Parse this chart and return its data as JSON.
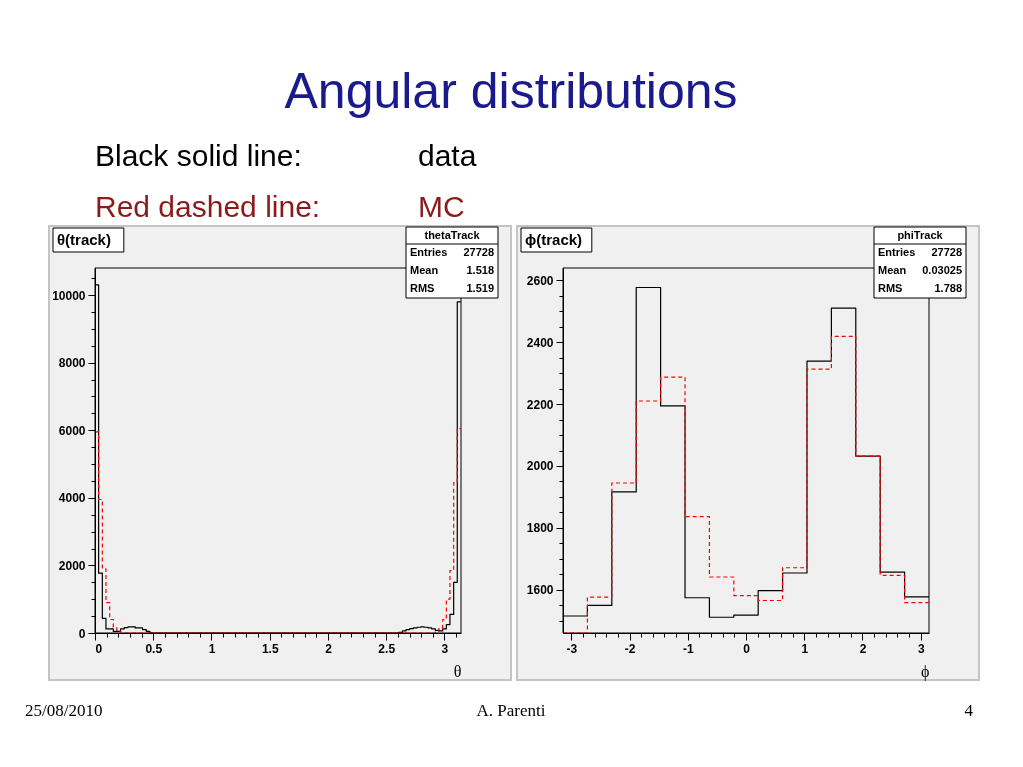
{
  "chart_data": [
    {
      "type": "other",
      "title": "Angular distributions",
      "annotations": [
        "Black solid line:",
        "data",
        "Red dashed line:",
        "MC"
      ]
    },
    {
      "type": "histogram",
      "title": "θ(track)",
      "xlabel": "θ",
      "annotations": [
        "thetaTrack",
        "Entries",
        "27728",
        "Mean",
        "1.518",
        "RMS",
        "1.519"
      ],
      "bins": [
        0,
        0.031,
        0.063,
        0.094,
        0.126,
        0.157,
        0.188,
        0.22,
        0.251,
        0.283,
        0.314,
        0.346,
        0.377,
        0.408,
        0.44,
        0.471,
        0.503,
        0.534,
        0.565,
        0.597,
        0.628,
        0.66,
        0.691,
        0.723,
        0.754,
        0.785,
        0.817,
        0.848,
        0.88,
        0.911,
        0.942,
        0.974,
        1.005,
        1.037,
        1.068,
        1.1,
        1.131,
        1.162,
        1.194,
        1.225,
        1.257,
        1.288,
        1.319,
        1.351,
        1.382,
        1.414,
        1.445,
        1.477,
        1.508,
        1.539,
        1.571,
        1.602,
        1.634,
        1.665,
        1.696,
        1.728,
        1.759,
        1.791,
        1.822,
        1.854,
        1.885,
        1.916,
        1.948,
        1.979,
        2.011,
        2.042,
        2.073,
        2.105,
        2.136,
        2.168,
        2.199,
        2.231,
        2.262,
        2.293,
        2.325,
        2.356,
        2.388,
        2.419,
        2.45,
        2.482,
        2.513,
        2.545,
        2.576,
        2.608,
        2.639,
        2.67,
        2.702,
        2.733,
        2.765,
        2.796,
        2.827,
        2.859,
        2.89,
        2.922,
        2.953,
        2.985,
        3.016,
        3.047,
        3.079,
        3.11,
        3.142
      ],
      "series": [
        {
          "color": "#000000",
          "line_style": "solid",
          "values": [
            10300,
            1770,
            430,
            120,
            120,
            50,
            50,
            120,
            160,
            180,
            180,
            150,
            150,
            100,
            50,
            0,
            0,
            0,
            0,
            0,
            0,
            0,
            0,
            0,
            0,
            0,
            0,
            0,
            0,
            0,
            0,
            0,
            0,
            0,
            0,
            0,
            0,
            0,
            0,
            0,
            0,
            0,
            0,
            0,
            0,
            0,
            0,
            0,
            0,
            0,
            0,
            0,
            0,
            0,
            0,
            0,
            0,
            0,
            0,
            0,
            0,
            0,
            0,
            0,
            0,
            0,
            0,
            0,
            0,
            0,
            0,
            0,
            0,
            0,
            0,
            0,
            0,
            0,
            0,
            0,
            0,
            0,
            0,
            20,
            60,
            100,
            130,
            150,
            170,
            180,
            170,
            150,
            120,
            80,
            60,
            120,
            250,
            550,
            1500,
            9800
          ]
        },
        {
          "color": "#ff0000",
          "line_style": "dashed",
          "values": [
            5950,
            3950,
            1900,
            900,
            400,
            150,
            50,
            0,
            0,
            0,
            0,
            0,
            0,
            0,
            0,
            0,
            0,
            0,
            0,
            0,
            0,
            0,
            0,
            0,
            0,
            0,
            0,
            0,
            0,
            0,
            0,
            0,
            0,
            0,
            0,
            0,
            0,
            0,
            0,
            0,
            0,
            0,
            0,
            0,
            0,
            0,
            0,
            0,
            0,
            0,
            0,
            0,
            0,
            0,
            0,
            0,
            0,
            0,
            0,
            0,
            0,
            0,
            0,
            0,
            0,
            0,
            0,
            0,
            0,
            0,
            0,
            0,
            0,
            0,
            0,
            0,
            0,
            0,
            0,
            0,
            0,
            0,
            0,
            0,
            0,
            0,
            0,
            0,
            0,
            0,
            0,
            0,
            0,
            50,
            150,
            400,
            1000,
            1850,
            4450,
            6050
          ]
        }
      ],
      "xlim": [
        0,
        3.142
      ],
      "ylim": [
        0,
        10800
      ],
      "xticks": [
        0,
        {
          "value": 0.1,
          "label": null
        },
        {
          "value": 0.2,
          "label": null
        },
        {
          "value": 0.3,
          "label": null
        },
        {
          "value": 0.4,
          "label": null
        },
        0.5,
        {
          "value": 0.6,
          "label": null
        },
        {
          "value": 0.7,
          "label": null
        },
        {
          "value": 0.8,
          "label": null
        },
        {
          "value": 0.9,
          "label": null
        },
        1,
        {
          "value": 1.1,
          "label": null
        },
        {
          "value": 1.2,
          "label": null
        },
        {
          "value": 1.3,
          "label": null
        },
        {
          "value": 1.4,
          "label": null
        },
        1.5,
        {
          "value": 1.6,
          "label": null
        },
        {
          "value": 1.7,
          "label": null
        },
        {
          "value": 1.8,
          "label": null
        },
        {
          "value": 1.9,
          "label": null
        },
        2,
        {
          "value": 2.1,
          "label": null
        },
        {
          "value": 2.2,
          "label": null
        },
        {
          "value": 2.3,
          "label": null
        },
        {
          "value": 2.4,
          "label": null
        },
        2.5,
        {
          "value": 2.6,
          "label": null
        },
        {
          "value": 2.7,
          "label": null
        },
        {
          "value": 2.8,
          "label": null
        },
        {
          "value": 2.9,
          "label": null
        },
        3,
        {
          "value": 3.1,
          "label": null
        }
      ],
      "yticks": [
        0,
        {
          "value": 500,
          "label": null
        },
        {
          "value": 1000,
          "label": null
        },
        {
          "value": 1500,
          "label": null
        },
        2000,
        {
          "value": 2500,
          "label": null
        },
        {
          "value": 3000,
          "label": null
        },
        {
          "value": 3500,
          "label": null
        },
        4000,
        {
          "value": 4500,
          "label": null
        },
        {
          "value": 5000,
          "label": null
        },
        {
          "value": 5500,
          "label": null
        },
        6000,
        {
          "value": 6500,
          "label": null
        },
        {
          "value": 7000,
          "label": null
        },
        {
          "value": 7500,
          "label": null
        },
        8000,
        {
          "value": 8500,
          "label": null
        },
        {
          "value": 9000,
          "label": null
        },
        {
          "value": 9500,
          "label": null
        },
        10000,
        {
          "value": 10500,
          "label": null
        }
      ]
    },
    {
      "type": "histogram",
      "title": "ϕ(track)",
      "xlabel": "ϕ",
      "annotations": [
        "phiTrack",
        "Entries",
        "27728",
        "Mean",
        "0.03025",
        "RMS",
        "1.788"
      ],
      "bins": [
        -3.142,
        -2.723,
        -2.304,
        -1.885,
        -1.466,
        -1.047,
        -0.628,
        -0.209,
        0.209,
        0.628,
        1.047,
        1.466,
        1.885,
        2.304,
        2.723,
        3.142
      ],
      "series": [
        {
          "color": "#000000",
          "line_style": "solid",
          "values": [
            1515,
            1549,
            1916,
            2577,
            2194,
            1574,
            1511,
            1518,
            1597,
            1654,
            2339,
            2510,
            2032,
            1657,
            1577
          ]
        },
        {
          "color": "#ff0000",
          "line_style": "dashed",
          "values": [
            1460,
            1576,
            1945,
            2210,
            2287,
            1836,
            1641,
            1581,
            1565,
            1671,
            2313,
            2419,
            2032,
            1646,
            1558
          ]
        }
      ],
      "xlim": [
        -3.142,
        3.142
      ],
      "ylim": [
        1460,
        2640
      ],
      "xticks": [
        -3,
        {
          "value": -2.8,
          "label": null
        },
        {
          "value": -2.6,
          "label": null
        },
        {
          "value": -2.4,
          "label": null
        },
        {
          "value": -2.2,
          "label": null
        },
        -2,
        {
          "value": -1.8,
          "label": null
        },
        {
          "value": -1.6,
          "label": null
        },
        {
          "value": -1.4,
          "label": null
        },
        {
          "value": -1.2,
          "label": null
        },
        -1,
        {
          "value": -0.8,
          "label": null
        },
        {
          "value": -0.6,
          "label": null
        },
        {
          "value": -0.4,
          "label": null
        },
        {
          "value": -0.2,
          "label": null
        },
        0,
        {
          "value": 0.2,
          "label": null
        },
        {
          "value": 0.4,
          "label": null
        },
        {
          "value": 0.6,
          "label": null
        },
        {
          "value": 0.8,
          "label": null
        },
        1,
        {
          "value": 1.2,
          "label": null
        },
        {
          "value": 1.4,
          "label": null
        },
        {
          "value": 1.6,
          "label": null
        },
        {
          "value": 1.8,
          "label": null
        },
        2,
        {
          "value": 2.2,
          "label": null
        },
        {
          "value": 2.4,
          "label": null
        },
        {
          "value": 2.6,
          "label": null
        },
        {
          "value": 2.8,
          "label": null
        },
        3
      ],
      "yticks": [
        {
          "value": 1500,
          "label": null
        },
        {
          "value": 1550,
          "label": null
        },
        1600,
        {
          "value": 1650,
          "label": null
        },
        {
          "value": 1700,
          "label": null
        },
        {
          "value": 1750,
          "label": null
        },
        1800,
        {
          "value": 1850,
          "label": null
        },
        {
          "value": 1900,
          "label": null
        },
        {
          "value": 1950,
          "label": null
        },
        2000,
        {
          "value": 2050,
          "label": null
        },
        {
          "value": 2100,
          "label": null
        },
        {
          "value": 2150,
          "label": null
        },
        2200,
        {
          "value": 2250,
          "label": null
        },
        {
          "value": 2300,
          "label": null
        },
        {
          "value": 2350,
          "label": null
        },
        2400,
        {
          "value": 2450,
          "label": null
        },
        {
          "value": 2500,
          "label": null
        },
        {
          "value": 2550,
          "label": null
        },
        2600
      ]
    },
    {
      "type": "other",
      "annotations": [
        "25/08/2010",
        "A. Parenti",
        "4"
      ]
    }
  ]
}
